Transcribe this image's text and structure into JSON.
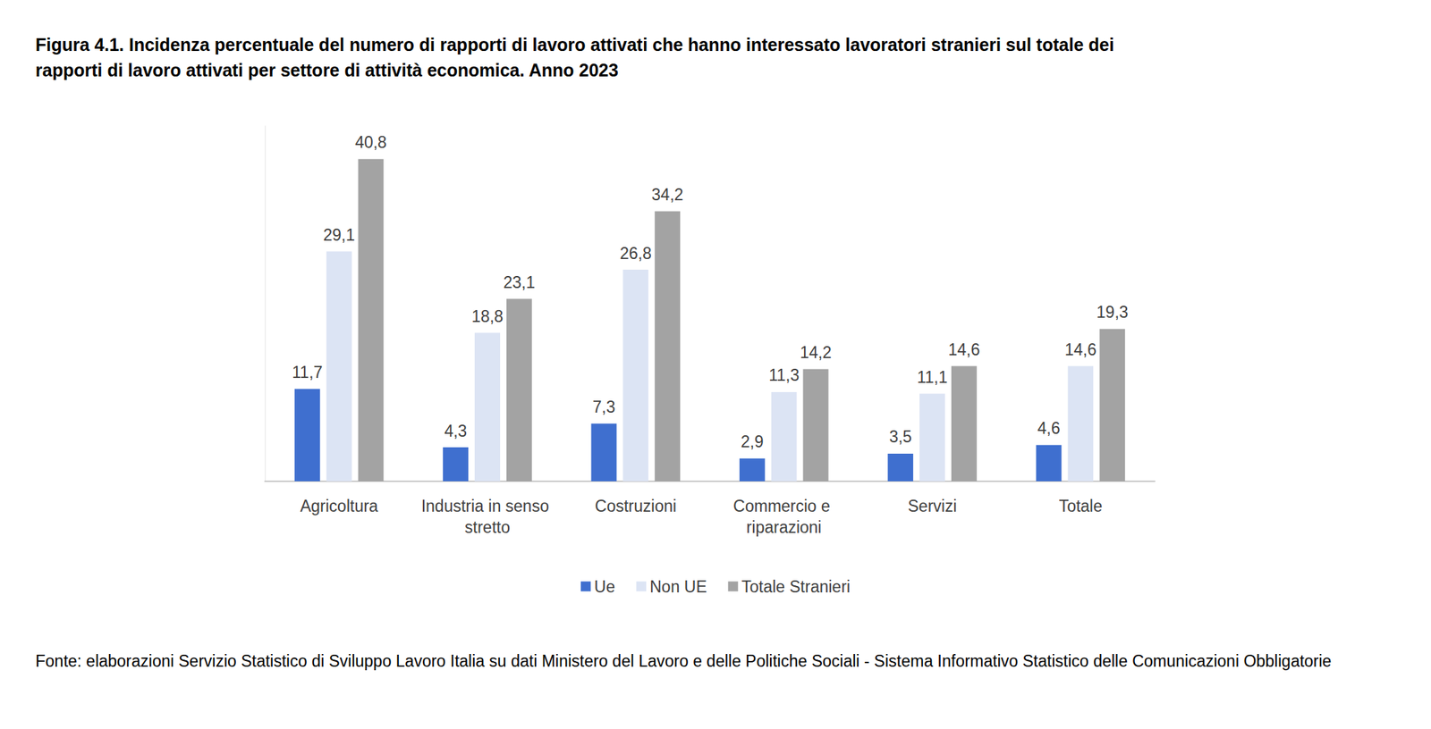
{
  "chart_data": {
    "type": "bar",
    "title": "Figura 4.1. Incidenza percentuale del numero di rapporti di lavoro attivati che hanno interessato lavoratori stranieri sul totale dei rapporti di lavoro attivati per settore di attività economica. Anno 2023",
    "source": "Fonte: elaborazioni Servizio Statistico di Sviluppo Lavoro Italia su dati Ministero del Lavoro e delle Politiche Sociali - Sistema Informativo Statistico delle Comunicazioni Obbligatorie",
    "categories": [
      "Agricoltura",
      "Industria in senso stretto",
      "Costruzioni",
      "Commercio e riparazioni",
      "Servizi",
      "Totale"
    ],
    "series": [
      {
        "name": "Ue",
        "color": "#3f6fcf",
        "values": [
          11.7,
          4.3,
          7.3,
          2.9,
          3.5,
          4.6
        ],
        "value_labels": [
          "11,7",
          "4,3",
          "7,3",
          "2,9",
          "3,5",
          "4,6"
        ]
      },
      {
        "name": "Non UE",
        "color": "#dce4f4",
        "values": [
          29.1,
          18.8,
          26.8,
          11.3,
          11.1,
          14.6
        ],
        "value_labels": [
          "29,1",
          "18,8",
          "26,8",
          "11,3",
          "11,1",
          "14,6"
        ]
      },
      {
        "name": "Totale Stranieri",
        "color": "#a3a3a3",
        "values": [
          40.8,
          23.1,
          34.2,
          14.2,
          14.6,
          19.3
        ],
        "value_labels": [
          "40,8",
          "23,1",
          "34,2",
          "14,2",
          "14,6",
          "19,3"
        ]
      }
    ],
    "ylim": [
      0,
      45
    ],
    "grid": false,
    "legend": "bottom",
    "data_labels": true,
    "tick_labels": "x"
  }
}
